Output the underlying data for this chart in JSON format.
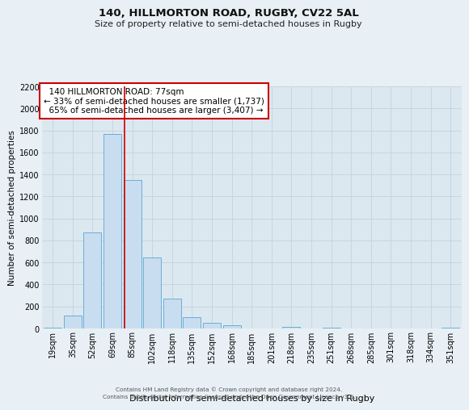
{
  "title": "140, HILLMORTON ROAD, RUGBY, CV22 5AL",
  "subtitle": "Size of property relative to semi-detached houses in Rugby",
  "xlabel": "Distribution of semi-detached houses by size in Rugby",
  "ylabel": "Number of semi-detached properties",
  "bar_labels": [
    "19sqm",
    "35sqm",
    "52sqm",
    "69sqm",
    "85sqm",
    "102sqm",
    "118sqm",
    "135sqm",
    "152sqm",
    "168sqm",
    "185sqm",
    "201sqm",
    "218sqm",
    "235sqm",
    "251sqm",
    "268sqm",
    "285sqm",
    "301sqm",
    "318sqm",
    "334sqm",
    "351sqm"
  ],
  "bar_values": [
    5,
    120,
    870,
    1770,
    1350,
    645,
    270,
    100,
    50,
    32,
    0,
    0,
    15,
    0,
    10,
    0,
    0,
    0,
    0,
    0,
    10
  ],
  "bar_color": "#c9ddf0",
  "bar_edge_color": "#6aaed6",
  "property_label": "140 HILLMORTON ROAD: 77sqm",
  "pct_smaller": 33,
  "count_smaller": 1737,
  "pct_larger": 65,
  "count_larger": 3407,
  "vline_x_index": 3.62,
  "annotation_box_edge_color": "#cc0000",
  "vline_color": "#cc0000",
  "ylim": [
    0,
    2200
  ],
  "yticks": [
    0,
    200,
    400,
    600,
    800,
    1000,
    1200,
    1400,
    1600,
    1800,
    2000,
    2200
  ],
  "grid_color": "#c8d4e0",
  "bg_color": "#dce8f0",
  "fig_bg_color": "#e8f0f5",
  "title_fontsize": 9.5,
  "subtitle_fontsize": 8,
  "ylabel_fontsize": 7.5,
  "xlabel_fontsize": 8,
  "tick_fontsize": 7,
  "annot_fontsize": 7.5,
  "footer_line1": "Contains HM Land Registry data © Crown copyright and database right 2024.",
  "footer_line2": "Contains public sector information licensed under the Open Government Licence v3.0."
}
